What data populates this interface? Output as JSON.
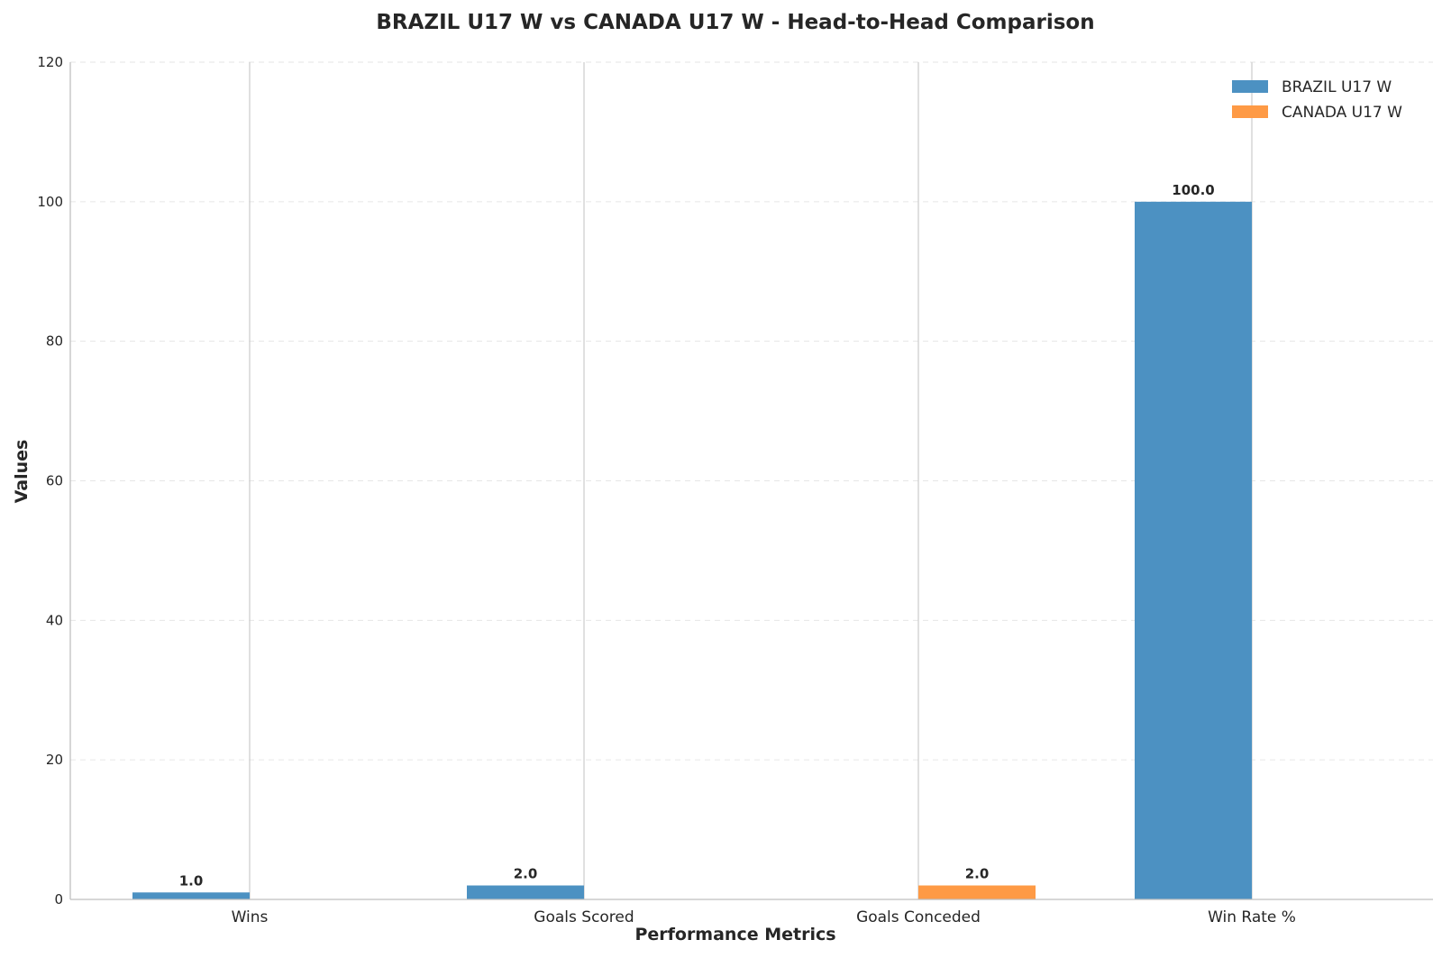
{
  "chart_data": {
    "type": "bar",
    "title": "BRAZIL U17 W vs CANADA U17 W - Head-to-Head Comparison",
    "xlabel": "Performance Metrics",
    "ylabel": "Values",
    "categories": [
      "Wins",
      "Goals Scored",
      "Goals Conceded",
      "Win Rate %"
    ],
    "series": [
      {
        "name": "BRAZIL U17 W",
        "values": [
          1.0,
          2.0,
          0.0,
          100.0
        ],
        "color": "#4c91c2",
        "labels": [
          "1.0",
          "2.0",
          "",
          "100.0"
        ]
      },
      {
        "name": "CANADA U17 W",
        "values": [
          0.0,
          0.0,
          2.0,
          0.0
        ],
        "color": "#fe9a45",
        "labels": [
          "",
          "",
          "2.0",
          ""
        ]
      }
    ],
    "ylim": [
      0,
      120
    ],
    "yticks": [
      0,
      20,
      40,
      60,
      80,
      100,
      120
    ],
    "grid": {
      "y": true,
      "x_at_categories": true,
      "style": "dashed"
    },
    "legend": "top-right"
  }
}
